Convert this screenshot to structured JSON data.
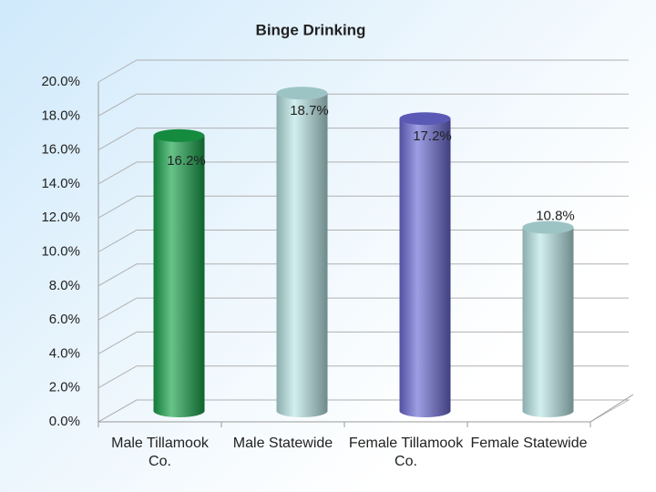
{
  "chart_data": {
    "type": "bar",
    "title": "Binge Drinking",
    "categories": [
      "Male Tillamook Co.",
      "Male Statewide",
      "Female Tillamook Co.",
      "Female Statewide"
    ],
    "values": [
      16.2,
      18.7,
      17.2,
      10.8
    ],
    "value_labels": [
      "16.2%",
      "18.7%",
      "17.2%",
      "10.8%"
    ],
    "colors": [
      "#17a34a",
      "#b9e6e6",
      "#6a6ad6",
      "#b9e6e6"
    ],
    "ylim": [
      0,
      20
    ],
    "yticks": [
      {
        "value": 0,
        "label": "0.0%"
      },
      {
        "value": 2,
        "label": "2.0%"
      },
      {
        "value": 4,
        "label": "4.0%"
      },
      {
        "value": 6,
        "label": "6.0%"
      },
      {
        "value": 8,
        "label": "8.0%"
      },
      {
        "value": 10,
        "label": "10.0%"
      },
      {
        "value": 12,
        "label": "12.0%"
      },
      {
        "value": 14,
        "label": "14.0%"
      },
      {
        "value": 16,
        "label": "16.0%"
      },
      {
        "value": 18,
        "label": "18.0%"
      },
      {
        "value": 20,
        "label": "20.0%"
      }
    ],
    "grid": true
  }
}
